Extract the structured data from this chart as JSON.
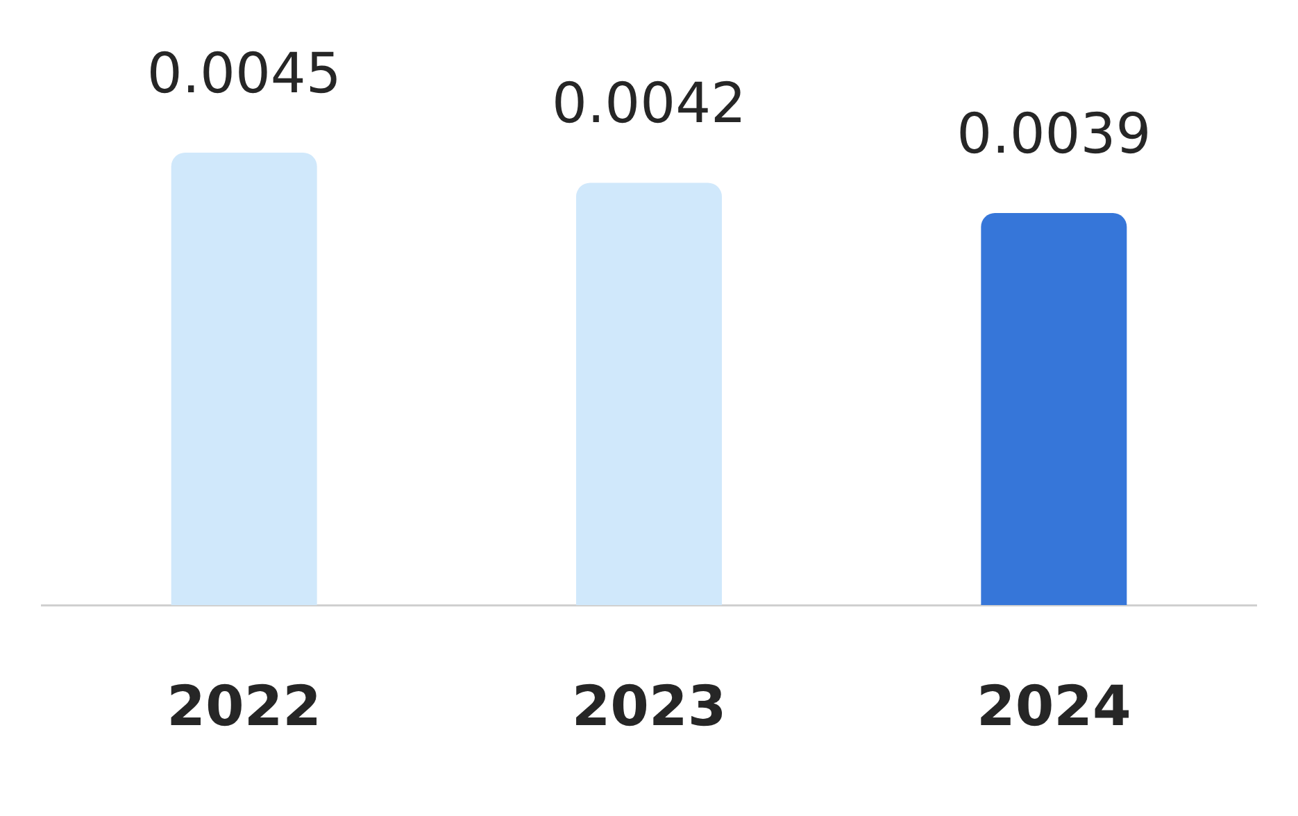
{
  "chart_data": {
    "type": "bar",
    "categories": [
      "2022",
      "2023",
      "2024"
    ],
    "values": [
      0.0045,
      0.0042,
      0.0039
    ],
    "colors": [
      "#d0e8fb",
      "#d0e8fb",
      "#3676d9"
    ],
    "data_labels": true,
    "grid": false,
    "legend": false
  }
}
